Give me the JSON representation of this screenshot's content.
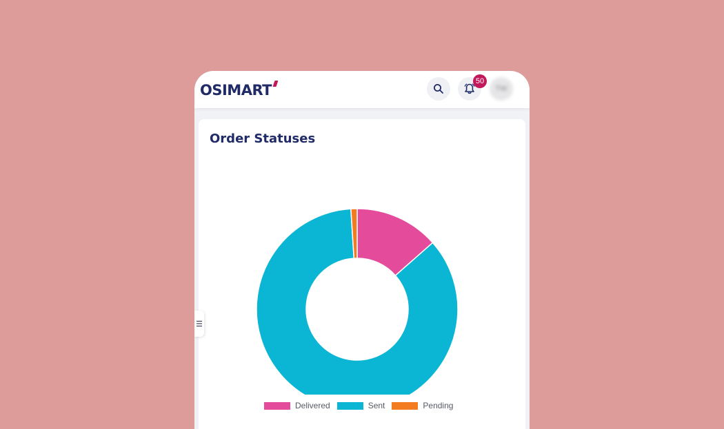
{
  "header": {
    "logo_text": "OSIMART",
    "notification_count": "50",
    "avatar_initials": "TW",
    "icons": [
      "search-icon",
      "bell-icon",
      "menu-icon"
    ]
  },
  "card": {
    "title": "Order Statuses"
  },
  "colors": {
    "delivered": "#e44b9b",
    "sent": "#0bb5d4",
    "pending": "#f47c20",
    "brand_navy": "#1f2a66",
    "brand_accent": "#c2185b"
  },
  "chart_data": {
    "type": "pie",
    "categories": [
      "Delivered",
      "Sent",
      "Pending"
    ],
    "values": [
      13.5,
      85.5,
      1
    ],
    "colors": [
      "#e44b9b",
      "#0bb5d4",
      "#f47c20"
    ],
    "legend_position": "bottom"
  }
}
